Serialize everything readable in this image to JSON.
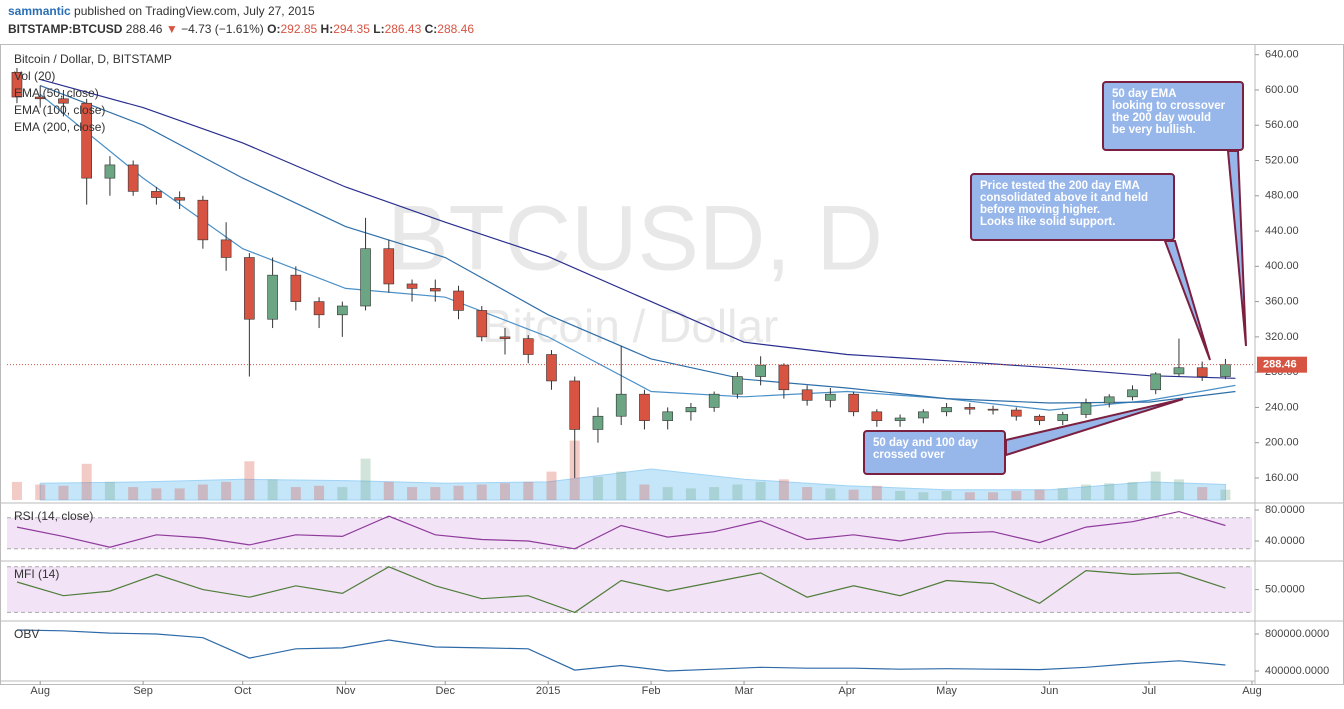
{
  "header": {
    "author": "sammantic",
    "published": "published on TradingView.com, July 27, 2015",
    "symbol": "BITSTAMP:BTCUSD",
    "price": "288.46",
    "arrow": "▼",
    "change": "−4.73 (−1.61%)",
    "o_label": "O:",
    "open": "292.85",
    "h_label": "H:",
    "high": "294.35",
    "l_label": "L:",
    "low": "286.43",
    "c_label": "C:",
    "close": "288.46"
  },
  "annotations": [
    "50 day EMA\nlooking to crossover\nthe 200 day would\nbe very bullish.",
    "Price tested the 200 day EMA\nconsolidated above it and held\nbefore moving higher.\nLooks like solid support.",
    "50 day and 100 day\ncrossed over"
  ],
  "chart_data": [
    {
      "type": "candlestick",
      "title": "Bitcoin / Dollar, D, BITSTAMP",
      "watermark": "BTCUSD, D",
      "watermark_subtitle": "Bitcoin / Dollar",
      "up_color": "#6ba583",
      "down_color": "#d75442",
      "x": [
        -7,
        0,
        7,
        14,
        21,
        28,
        35,
        42,
        49,
        56,
        63,
        70,
        77,
        84,
        91,
        98,
        105,
        112,
        119,
        126,
        133,
        140,
        147,
        154,
        161,
        168,
        175,
        182,
        189,
        196,
        203,
        210,
        217,
        224,
        231,
        238,
        245,
        252,
        259,
        266,
        273,
        280,
        287,
        294,
        301,
        308,
        315,
        322,
        329,
        336,
        343,
        350,
        357
      ],
      "open": [
        620,
        592,
        590,
        585,
        500,
        515,
        485,
        478,
        475,
        430,
        410,
        340,
        390,
        360,
        345,
        355,
        420,
        380,
        375,
        372,
        350,
        320,
        318,
        300,
        270,
        215,
        230,
        255,
        225,
        235,
        240,
        255,
        275,
        288,
        260,
        248,
        255,
        235,
        225,
        228,
        235,
        240,
        238,
        237,
        230,
        225,
        232,
        245,
        252,
        260,
        278,
        285,
        275
      ],
      "high": [
        625,
        605,
        600,
        590,
        525,
        520,
        490,
        485,
        480,
        450,
        415,
        410,
        400,
        365,
        360,
        455,
        430,
        385,
        385,
        378,
        355,
        330,
        322,
        305,
        275,
        240,
        310,
        260,
        240,
        245,
        258,
        280,
        298,
        290,
        265,
        262,
        258,
        238,
        232,
        238,
        245,
        245,
        242,
        240,
        232,
        235,
        250,
        255,
        265,
        280,
        318,
        292,
        295
      ],
      "low": [
        585,
        580,
        570,
        470,
        480,
        480,
        470,
        465,
        420,
        395,
        275,
        330,
        350,
        330,
        320,
        350,
        370,
        360,
        360,
        340,
        315,
        300,
        290,
        260,
        160,
        200,
        220,
        215,
        215,
        225,
        235,
        250,
        265,
        250,
        242,
        240,
        230,
        218,
        218,
        222,
        230,
        232,
        232,
        225,
        220,
        220,
        228,
        240,
        248,
        255,
        275,
        270,
        272
      ],
      "close": [
        592,
        590,
        585,
        500,
        515,
        485,
        478,
        475,
        430,
        410,
        340,
        390,
        360,
        345,
        355,
        420,
        380,
        375,
        372,
        350,
        320,
        318,
        300,
        270,
        215,
        230,
        255,
        225,
        235,
        240,
        255,
        275,
        288,
        260,
        248,
        255,
        235,
        225,
        228,
        235,
        240,
        238,
        237,
        230,
        225,
        232,
        245,
        252,
        260,
        278,
        285,
        275,
        288.46
      ],
      "volume": {
        "name": "Vol (20)",
        "lim": [
          0,
          240
        ],
        "ma_color": "#9fd3f5",
        "values": [
          70,
          60,
          55,
          140,
          70,
          50,
          45,
          45,
          60,
          70,
          150,
          80,
          50,
          55,
          50,
          160,
          70,
          50,
          50,
          55,
          60,
          65,
          70,
          110,
          230,
          90,
          110,
          60,
          50,
          45,
          50,
          60,
          70,
          80,
          50,
          45,
          40,
          55,
          35,
          30,
          35,
          30,
          30,
          35,
          40,
          45,
          60,
          65,
          70,
          110,
          80,
          50,
          40
        ],
        "ma_x": [
          0,
          31,
          61,
          92,
          122,
          153,
          184,
          212,
          243,
          273,
          304,
          334,
          357
        ],
        "ma_values": [
          65,
          70,
          80,
          75,
          65,
          70,
          120,
          80,
          55,
          40,
          40,
          70,
          60
        ]
      },
      "series": [
        {
          "name": "EMA (50, close)",
          "color": "#4a90c8",
          "x": [
            0,
            31,
            61,
            92,
            122,
            153,
            184,
            212,
            243,
            273,
            304,
            334,
            360
          ],
          "values": [
            595,
            500,
            420,
            375,
            365,
            320,
            258,
            252,
            258,
            250,
            237,
            248,
            265
          ]
        },
        {
          "name": "EMA (100, close)",
          "color": "#2f6fa8",
          "x": [
            0,
            31,
            61,
            92,
            122,
            153,
            184,
            212,
            243,
            273,
            304,
            334,
            360
          ],
          "values": [
            605,
            560,
            500,
            445,
            410,
            345,
            295,
            272,
            262,
            250,
            245,
            246,
            258
          ]
        },
        {
          "name": "EMA (200, close)",
          "color": "#2a2f8f",
          "x": [
            0,
            31,
            61,
            92,
            122,
            153,
            184,
            212,
            243,
            273,
            304,
            334,
            360
          ],
          "values": [
            612,
            580,
            540,
            490,
            450,
            411,
            360,
            314,
            300,
            293,
            285,
            276,
            273
          ]
        }
      ],
      "last_price": 288.46,
      "last_price_color": "#d75442",
      "xlim": [
        -10,
        365
      ],
      "xticks": [
        {
          "value": 0,
          "label": "Aug"
        },
        {
          "value": 31,
          "label": "Sep"
        },
        {
          "value": 61,
          "label": "Oct"
        },
        {
          "value": 92,
          "label": "Nov"
        },
        {
          "value": 122,
          "label": "Dec"
        },
        {
          "value": 153,
          "label": "2015"
        },
        {
          "value": 184,
          "label": "Feb"
        },
        {
          "value": 212,
          "label": "Mar"
        },
        {
          "value": 243,
          "label": "Apr"
        },
        {
          "value": 273,
          "label": "May"
        },
        {
          "value": 304,
          "label": "Jun"
        },
        {
          "value": 334,
          "label": "Jul"
        },
        {
          "value": 365,
          "label": "Aug"
        }
      ],
      "ylim": [
        135,
        651
      ],
      "yticks": [
        {
          "value": 160,
          "label": "160.00"
        },
        {
          "value": 200,
          "label": "200.00"
        },
        {
          "value": 240,
          "label": "240.00"
        },
        {
          "value": 280,
          "label": "280.00"
        },
        {
          "value": 320,
          "label": "320.00"
        },
        {
          "value": 360,
          "label": "360.00"
        },
        {
          "value": 400,
          "label": "400.00"
        },
        {
          "value": 440,
          "label": "440.00"
        },
        {
          "value": 480,
          "label": "480.00"
        },
        {
          "value": 520,
          "label": "520.00"
        },
        {
          "value": 560,
          "label": "560.00"
        },
        {
          "value": 600,
          "label": "600.00"
        },
        {
          "value": 640,
          "label": "640.00"
        }
      ]
    },
    {
      "type": "line",
      "band": [
        70,
        30
      ],
      "band_color": "#f3e3f7",
      "series": [
        {
          "name": "RSI (14, close)",
          "color": "#8e3b9b",
          "x": [
            -7,
            7,
            21,
            35,
            49,
            63,
            77,
            91,
            105,
            119,
            133,
            147,
            161,
            175,
            189,
            203,
            217,
            231,
            245,
            259,
            273,
            287,
            301,
            315,
            329,
            343,
            357
          ],
          "values": [
            58,
            46,
            32,
            48,
            44,
            35,
            48,
            46,
            72,
            48,
            42,
            40,
            30,
            60,
            45,
            52,
            66,
            42,
            48,
            40,
            50,
            52,
            38,
            58,
            65,
            78,
            60
          ]
        }
      ],
      "ylim": [
        15.5,
        86.5
      ],
      "yticks": [
        {
          "value": 80,
          "label": "80.0000"
        },
        {
          "value": 40,
          "label": "40.0000"
        }
      ]
    },
    {
      "type": "line",
      "band": [
        80,
        20
      ],
      "band_color": "#f3e3f7",
      "series": [
        {
          "name": "MFI (14)",
          "color": "#4f7d3a",
          "x": [
            -7,
            7,
            21,
            35,
            49,
            63,
            77,
            91,
            105,
            119,
            133,
            147,
            161,
            175,
            189,
            203,
            217,
            231,
            245,
            259,
            273,
            287,
            301,
            315,
            329,
            343,
            357
          ],
          "values": [
            60,
            42,
            48,
            70,
            50,
            40,
            55,
            45,
            80,
            55,
            38,
            42,
            20,
            62,
            48,
            60,
            72,
            40,
            55,
            42,
            62,
            58,
            32,
            75,
            70,
            72,
            52
          ]
        }
      ],
      "ylim": [
        10,
        85
      ],
      "yticks": [
        {
          "value": 50,
          "label": "50.0000"
        }
      ]
    },
    {
      "type": "line",
      "series": [
        {
          "name": "OBV",
          "color": "#2e6aa8",
          "x": [
            -7,
            7,
            21,
            35,
            49,
            63,
            77,
            91,
            105,
            119,
            133,
            147,
            161,
            175,
            189,
            203,
            217,
            231,
            245,
            259,
            273,
            287,
            301,
            315,
            329,
            343,
            357
          ],
          "values": [
            843000,
            835000,
            810000,
            800000,
            760000,
            540000,
            640000,
            650000,
            735000,
            660000,
            650000,
            640000,
            410000,
            460000,
            400000,
            420000,
            440000,
            430000,
            430000,
            420000,
            425000,
            420000,
            415000,
            440000,
            480000,
            510000,
            465000
          ]
        }
      ],
      "ylim": [
        302700,
        919000
      ],
      "yticks": [
        {
          "value": 800000,
          "label": "800000.0000"
        },
        {
          "value": 400000,
          "label": "400000.0000"
        }
      ]
    }
  ]
}
